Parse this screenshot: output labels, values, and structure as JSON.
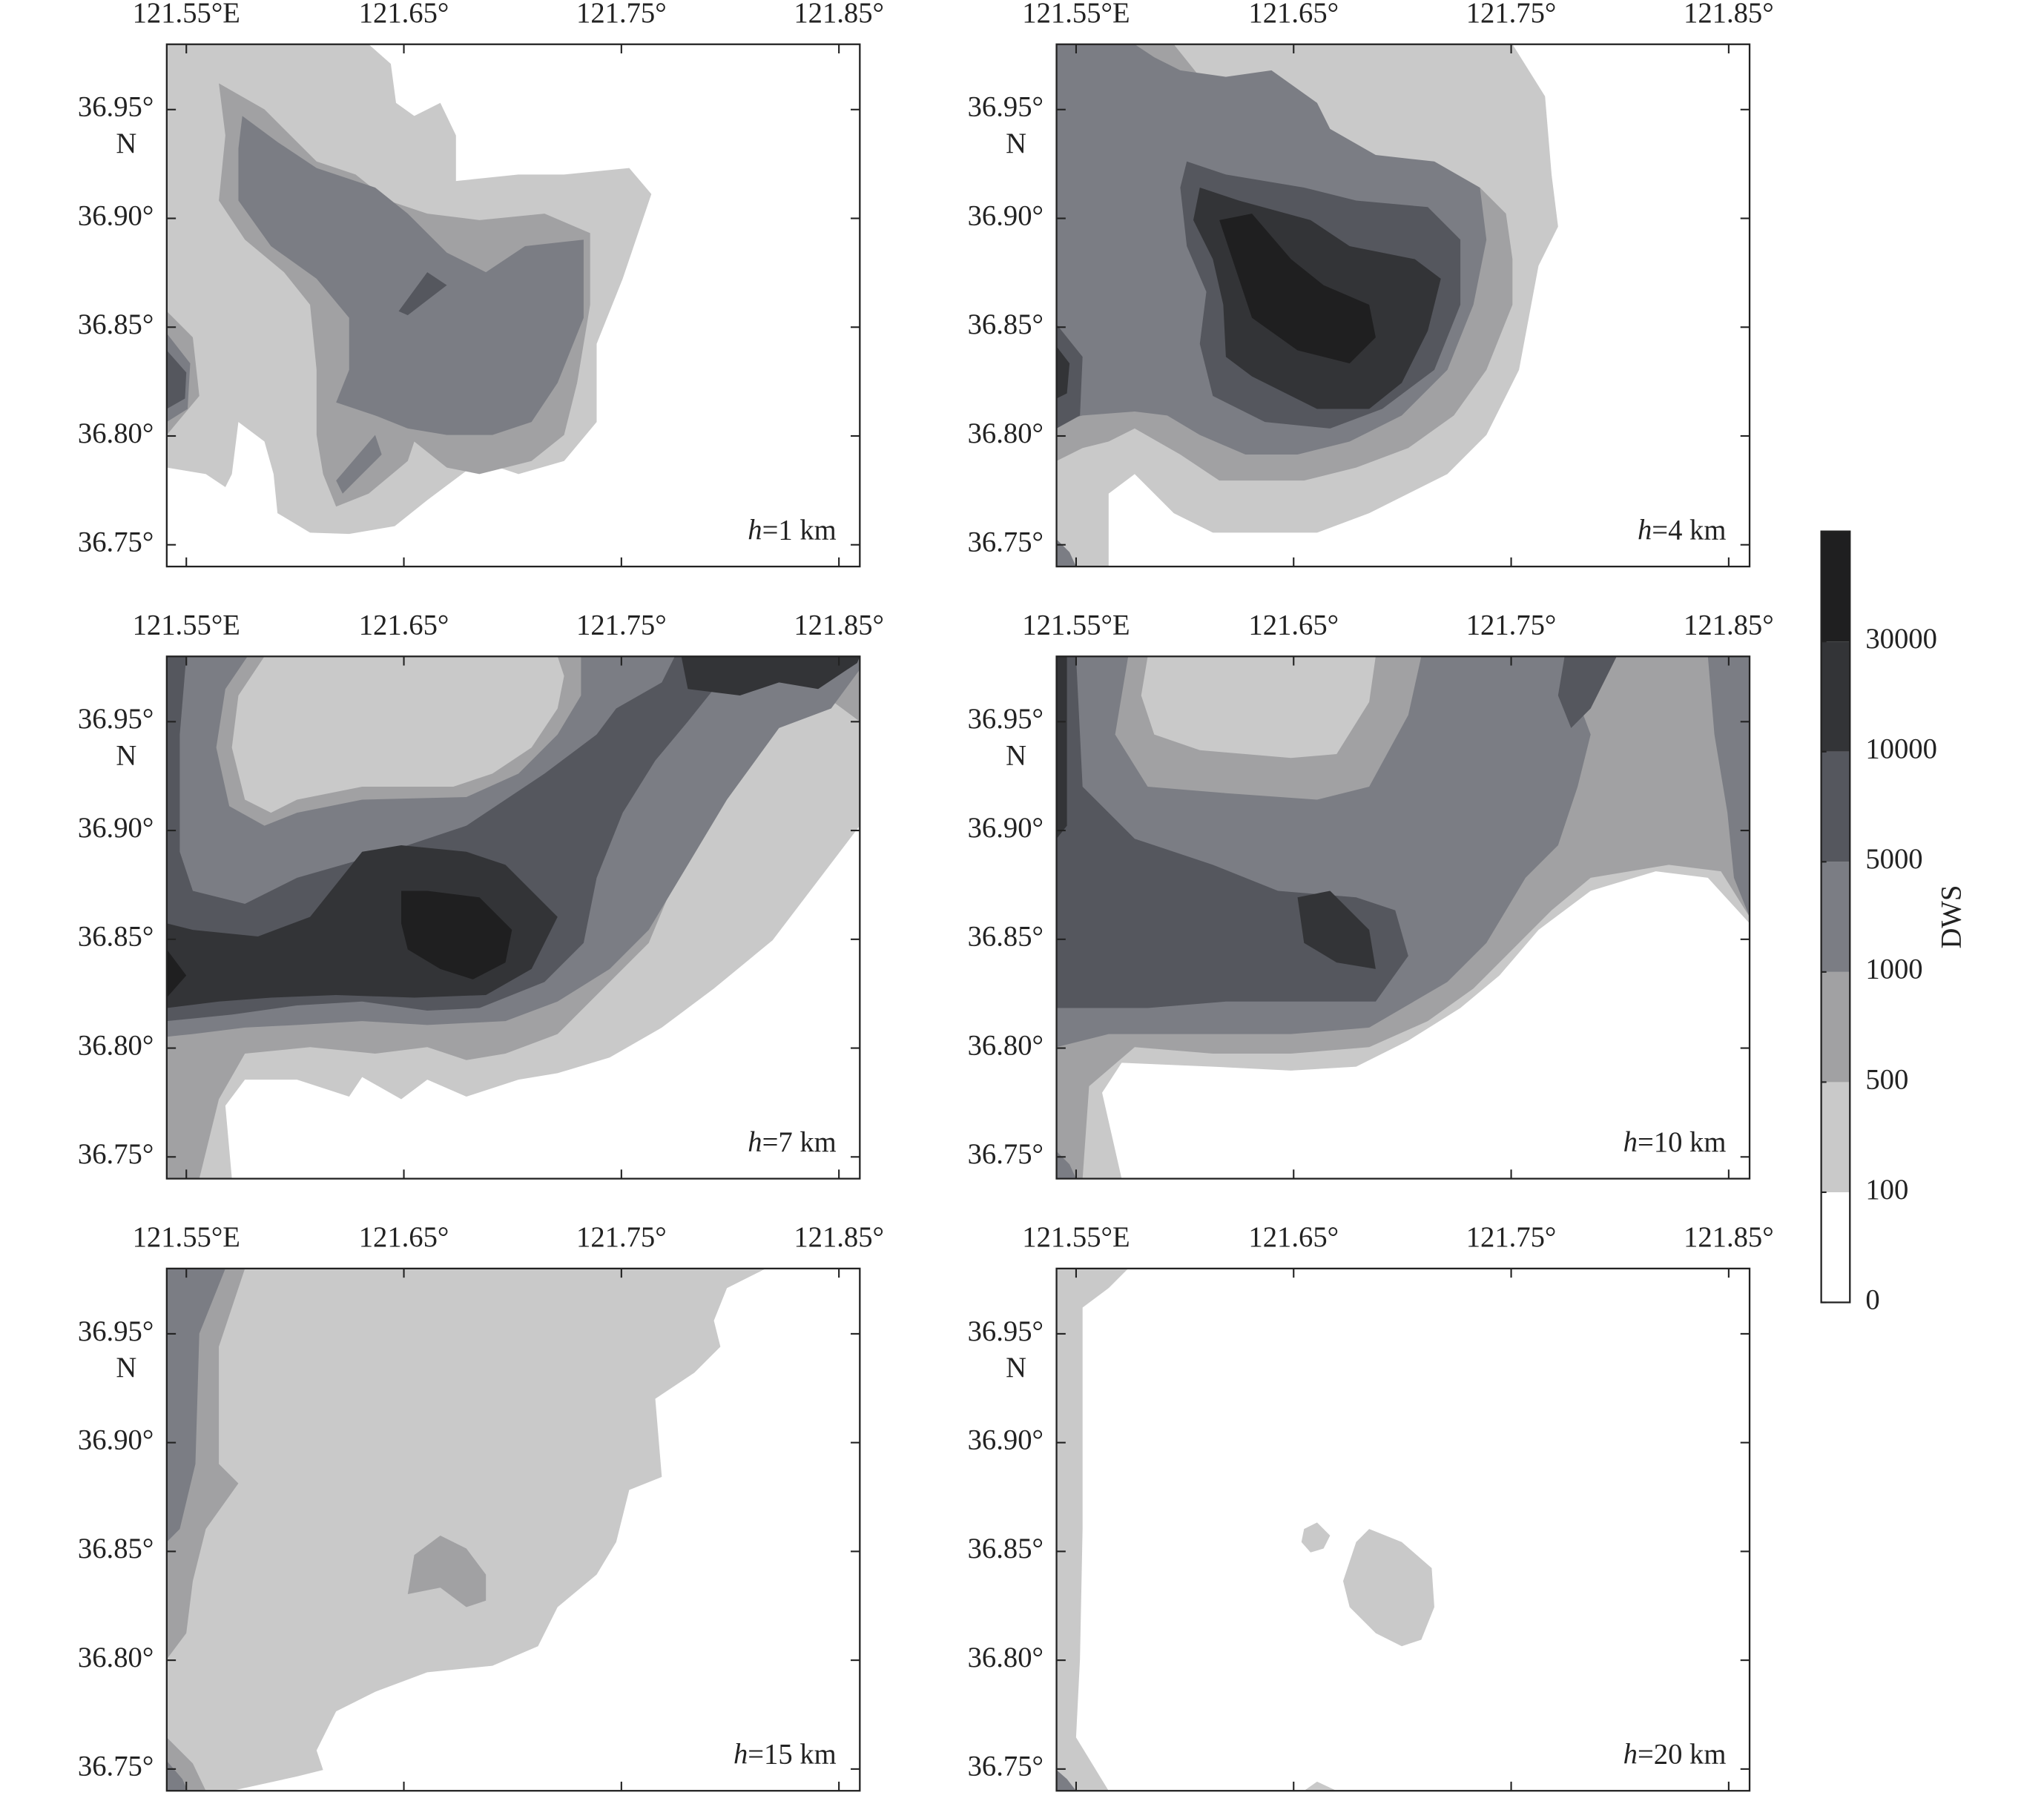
{
  "figure": {
    "xlim": [
      121.541,
      121.8596
    ],
    "ylim": [
      36.74,
      36.98
    ],
    "xticks": [
      {
        "value": 121.55,
        "label": "121.55°E"
      },
      {
        "value": 121.65,
        "label": "121.65°"
      },
      {
        "value": 121.75,
        "label": "121.75°"
      },
      {
        "value": 121.85,
        "label": "121.85°"
      }
    ],
    "yticks": [
      {
        "value": 36.95,
        "label": "36.95°"
      },
      {
        "value": 36.9,
        "label": "36.90°"
      },
      {
        "value": 36.85,
        "label": "36.85°"
      },
      {
        "value": 36.8,
        "label": "36.80°"
      },
      {
        "value": 36.75,
        "label": "36.75°"
      }
    ],
    "ylabel_suffix": "N",
    "panels": [
      {
        "var": "h",
        "text": "=1 km"
      },
      {
        "var": "h",
        "text": "=4 km"
      },
      {
        "var": "h",
        "text": "=7 km"
      },
      {
        "var": "h",
        "text": "=10 km"
      },
      {
        "var": "h",
        "text": "=15 km"
      },
      {
        "var": "h",
        "text": "=20 km"
      }
    ],
    "colorbar": {
      "label": "DWS",
      "ticks": [
        0,
        100,
        500,
        1000,
        5000,
        10000,
        30000
      ],
      "colors": [
        "#ffffff",
        "#c9c9c9",
        "#a1a1a3",
        "#7b7d84",
        "#55575e",
        "#333437",
        "#1f1f20"
      ]
    }
  }
}
